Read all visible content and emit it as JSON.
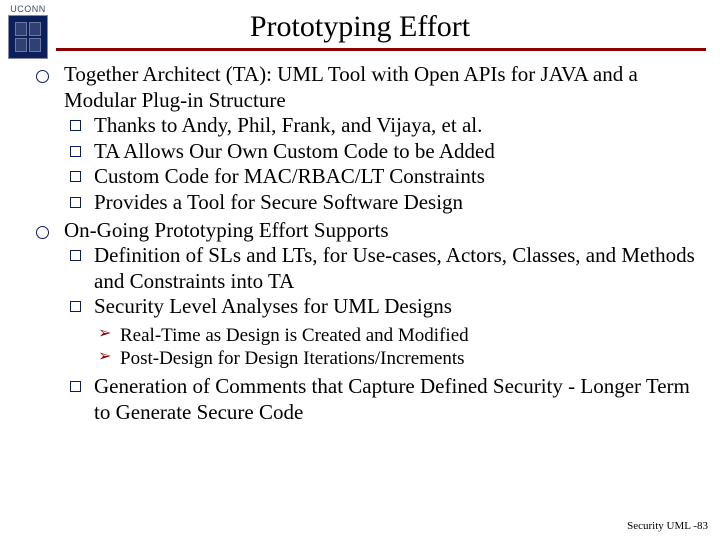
{
  "logo_text": "UCONN",
  "title": "Prototyping Effort",
  "colors": {
    "rule": "#8b0000",
    "bullet_border": "#0b1f5b",
    "arrow": "#8b0000",
    "shield": "#0b1f5b"
  },
  "b1": {
    "text": "Together Architect (TA): UML Tool with Open APIs for JAVA and a Modular Plug-in Structure",
    "s1": "Thanks to Andy, Phil, Frank, and Vijaya, et al.",
    "s2": "TA Allows Our Own Custom Code to be Added",
    "s3": "Custom Code for MAC/RBAC/LT Constraints",
    "s4": "Provides a Tool for Secure Software Design"
  },
  "b2": {
    "text": "On-Going Prototyping Effort Supports",
    "s1": "Definition of SLs and LTs, for Use-cases, Actors, Classes, and Methods and Constraints into TA",
    "s2": "Security Level Analyses for UML Designs",
    "a1": "Real-Time as Design is Created and Modified",
    "a2": "Post-Design for Design Iterations/Increments"
  },
  "lone": "Generation of Comments that Capture Defined Security - Longer Term to Generate Secure Code",
  "footer": "Security UML -83"
}
